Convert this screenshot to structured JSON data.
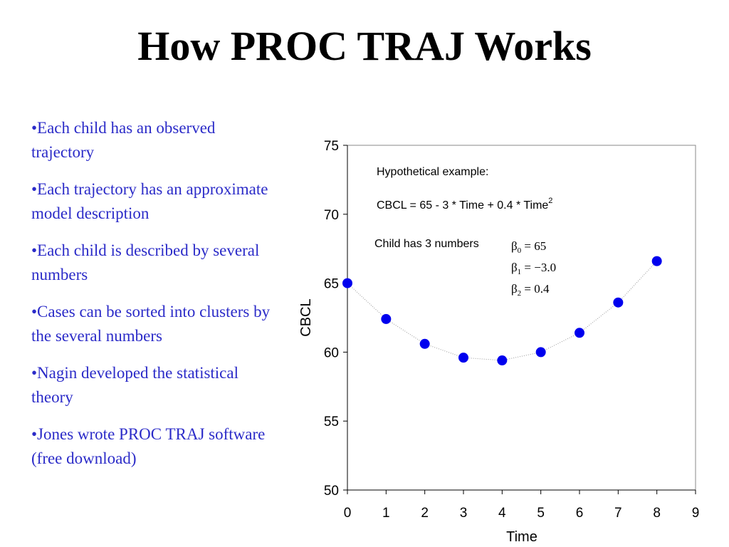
{
  "slide": {
    "title": "How PROC TRAJ Works",
    "bullets": [
      "•Each child has an observed trajectory",
      "•Each trajectory has an approximate model description",
      "•Each child is described by several numbers",
      "•Cases can be sorted into clusters by the several numbers",
      "•Nagin developed the statistical theory",
      "•Jones wrote PROC TRAJ software (free download)"
    ],
    "bullet_color": "#2b2bc8"
  },
  "chart_data": {
    "type": "scatter",
    "xlabel": "Time",
    "ylabel": "CBCL",
    "xlim": [
      0,
      9
    ],
    "ylim": [
      50,
      75
    ],
    "xticks": [
      0,
      1,
      2,
      3,
      4,
      5,
      6,
      7,
      8,
      9
    ],
    "yticks": [
      50,
      55,
      60,
      65,
      70,
      75
    ],
    "grid": false,
    "marker_color": "#0000ee",
    "series": [
      {
        "x": [
          0,
          1,
          2,
          3,
          4,
          5,
          6,
          7,
          8
        ],
        "y": [
          65.0,
          62.4,
          60.6,
          59.6,
          59.4,
          60.0,
          61.4,
          63.6,
          66.6
        ]
      }
    ],
    "annotations": {
      "heading": "Hypothetical example:",
      "formula": "CBCL = 65 - 3 * Time + 0.4 * Time",
      "formula_sup": "2",
      "child_label": "Child has 3 numbers",
      "betas": [
        {
          "symbol": "β",
          "sub": "0",
          "rhs": " = 65"
        },
        {
          "symbol": "β",
          "sub": "1",
          "rhs": " = −3.0"
        },
        {
          "symbol": "β",
          "sub": "2",
          "rhs": " = 0.4"
        }
      ]
    }
  }
}
